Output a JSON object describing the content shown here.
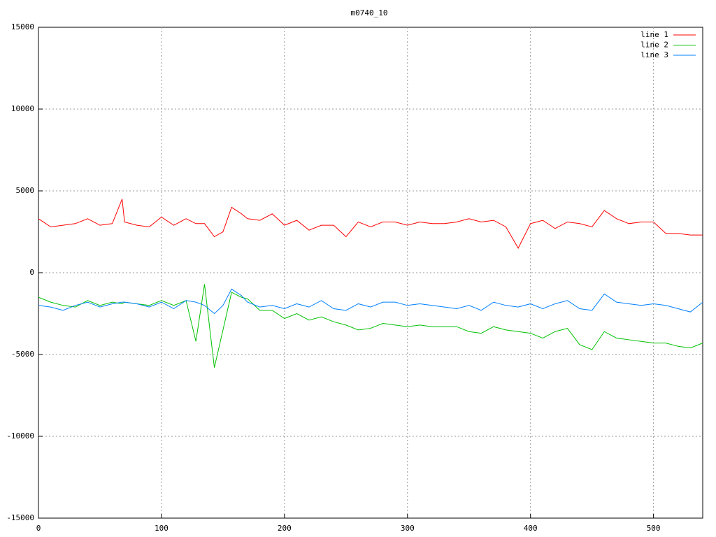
{
  "chart_data": {
    "type": "line",
    "title": "m0740_10",
    "x": [
      0,
      10,
      20,
      30,
      40,
      50,
      60,
      68,
      70,
      80,
      90,
      100,
      110,
      120,
      128,
      135,
      143,
      150,
      157,
      165,
      170,
      180,
      190,
      200,
      210,
      220,
      230,
      240,
      250,
      260,
      270,
      280,
      290,
      300,
      310,
      320,
      330,
      340,
      350,
      360,
      370,
      380,
      390,
      400,
      410,
      420,
      430,
      440,
      450,
      460,
      470,
      480,
      490,
      500,
      510,
      520,
      530,
      540
    ],
    "series": [
      {
        "name": "line 1",
        "color": "#ff0000",
        "values": [
          3300,
          2800,
          2900,
          3000,
          3300,
          2900,
          3000,
          4500,
          3100,
          2900,
          2800,
          3400,
          2900,
          3300,
          3000,
          3000,
          2200,
          2500,
          4000,
          3600,
          3300,
          3200,
          3600,
          2900,
          3200,
          2600,
          2900,
          2900,
          2200,
          3100,
          2800,
          3100,
          3100,
          2900,
          3100,
          3000,
          3000,
          3100,
          3300,
          3100,
          3200,
          2800,
          1500,
          3000,
          3200,
          2700,
          3100,
          3000,
          2800,
          3800,
          3300,
          3000,
          3100,
          3100,
          2400,
          2400,
          2300,
          2300
        ]
      },
      {
        "name": "line 2",
        "color": "#00c000",
        "values": [
          -1500,
          -1800,
          -2000,
          -2100,
          -1700,
          -2000,
          -1800,
          -1900,
          -1800,
          -1900,
          -2000,
          -1700,
          -2000,
          -1700,
          -4200,
          -700,
          -5800,
          -3500,
          -1200,
          -1500,
          -1600,
          -2300,
          -2300,
          -2800,
          -2500,
          -2900,
          -2700,
          -3000,
          -3200,
          -3500,
          -3400,
          -3100,
          -3200,
          -3300,
          -3200,
          -3300,
          -3300,
          -3300,
          -3600,
          -3700,
          -3300,
          -3500,
          -3600,
          -3700,
          -4000,
          -3600,
          -3400,
          -4400,
          -4700,
          -3600,
          -4000,
          -4100,
          -4200,
          -4300,
          -4300,
          -4500,
          -4600,
          -4300
        ]
      },
      {
        "name": "line 3",
        "color": "#0080ff",
        "values": [
          -2000,
          -2100,
          -2300,
          -2000,
          -1800,
          -2100,
          -1900,
          -1800,
          -1800,
          -1900,
          -2100,
          -1800,
          -2200,
          -1700,
          -1800,
          -2000,
          -2500,
          -2000,
          -1000,
          -1400,
          -1800,
          -2100,
          -2000,
          -2200,
          -1900,
          -2100,
          -1700,
          -2200,
          -2300,
          -1900,
          -2100,
          -1800,
          -1800,
          -2000,
          -1900,
          -2000,
          -2100,
          -2200,
          -2000,
          -2300,
          -1800,
          -2000,
          -2100,
          -1900,
          -2200,
          -1900,
          -1700,
          -2200,
          -2300,
          -1300,
          -1800,
          -1900,
          -2000,
          -1900,
          -2000,
          -2200,
          -2400,
          -1800
        ]
      }
    ],
    "xlim": [
      0,
      540
    ],
    "xticks": [
      0,
      100,
      200,
      300,
      400,
      500
    ],
    "ylim": [
      -15000,
      15000
    ],
    "yticks": [
      -15000,
      -10000,
      -5000,
      0,
      5000,
      10000,
      15000
    ],
    "grid": true,
    "legend": "top-right"
  }
}
